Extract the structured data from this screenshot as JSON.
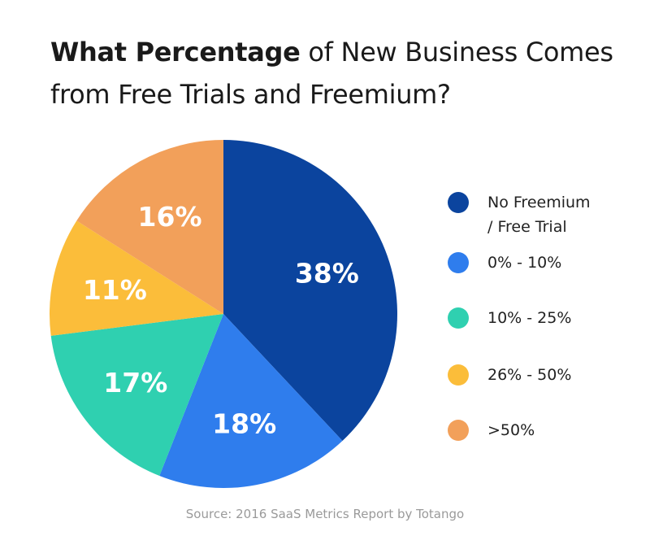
{
  "title": {
    "bold_part": "What Percentage",
    "rest_line1": " of New Business Comes",
    "line2": "from Free Trials and Freemium?"
  },
  "source": "Source: 2016 SaaS Metrics Report by Totango",
  "chart_data": {
    "type": "pie",
    "title": "What Percentage of New Business Comes from Free Trials and Freemium?",
    "categories": [
      "No Freemium / Free Trial",
      "0% - 10%",
      "10% - 25%",
      "26% - 50%",
      ">50%"
    ],
    "values": [
      38,
      18,
      17,
      11,
      16
    ],
    "labels": [
      "38%",
      "18%",
      "17%",
      "11%",
      "16%"
    ],
    "colors": [
      "#0b449e",
      "#2f7ded",
      "#2fd0b0",
      "#fbbd3a",
      "#f2a05a"
    ],
    "legend": {
      "placement": "right",
      "entries": [
        {
          "line1": "No Freemium",
          "line2": "/ Free Trial",
          "color": "#0b449e"
        },
        {
          "line1": "0% - 10%",
          "line2": "",
          "color": "#2f7ded"
        },
        {
          "line1": "10% - 25%",
          "line2": "",
          "color": "#2fd0b0"
        },
        {
          "line1": "26% - 50%",
          "line2": "",
          "color": "#fbbd3a"
        },
        {
          "line1": ">50%",
          "line2": "",
          "color": "#f2a05a"
        }
      ]
    }
  }
}
